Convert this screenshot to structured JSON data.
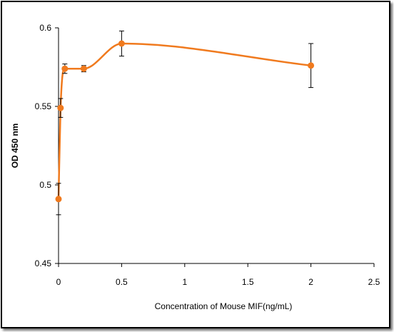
{
  "chart_data": {
    "type": "scatter",
    "title": "",
    "xlabel": "Concentration of Mouse MIF(ng/mL)",
    "ylabel": "OD 450 nm",
    "xlim": [
      0,
      2.5
    ],
    "ylim": [
      0.45,
      0.6
    ],
    "x_ticks": [
      "0",
      "0.5",
      "1",
      "1.5",
      "2",
      "2.5"
    ],
    "y_ticks": [
      "0.45",
      "0.5",
      "0.55",
      "0.6"
    ],
    "grid": false,
    "legend": "none",
    "series": [
      {
        "x": [
          0,
          0.016,
          0.05,
          0.2,
          0.5,
          2
        ],
        "y": [
          0.491,
          0.549,
          0.574,
          0.574,
          0.59,
          0.576
        ],
        "error": [
          0.01,
          0.006,
          0.003,
          0.002,
          0.008,
          0.014
        ],
        "smoothed_line": true,
        "color": "#f07a1e"
      }
    ]
  }
}
